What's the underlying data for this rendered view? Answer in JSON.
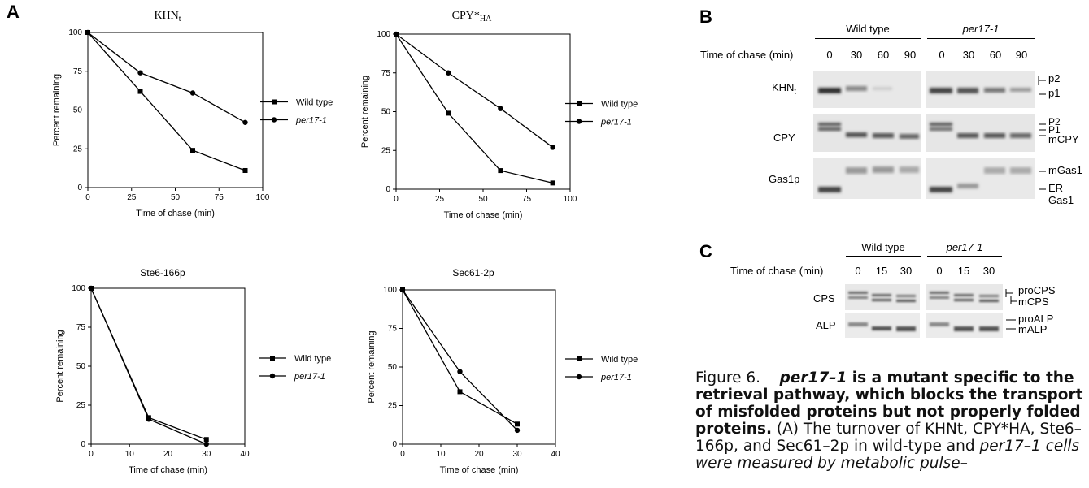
{
  "panel_a": {
    "letter": "A",
    "legend": {
      "wt": "Wild type",
      "mut": "per17-1"
    },
    "xlabel": "Time of chase (min)",
    "ylabel": "Percent remaining"
  },
  "chart_data": [
    {
      "type": "line",
      "title": "KHNt",
      "xlabel": "Time of chase (min)",
      "ylabel": "Percent remaining",
      "xlim": [
        0,
        100
      ],
      "ylim": [
        0,
        100
      ],
      "xticks": [
        0,
        25,
        50,
        75,
        100
      ],
      "yticks": [
        0,
        25,
        50,
        75,
        100
      ],
      "series": [
        {
          "name": "Wild type",
          "x": [
            0,
            30,
            60,
            90
          ],
          "y": [
            100,
            62,
            24,
            11
          ]
        },
        {
          "name": "per17-1",
          "x": [
            0,
            30,
            60,
            90
          ],
          "y": [
            100,
            74,
            61,
            42
          ]
        }
      ]
    },
    {
      "type": "line",
      "title": "CPY*HA",
      "xlabel": "Time of chase (min)",
      "ylabel": "Percent remaining",
      "xlim": [
        0,
        100
      ],
      "ylim": [
        0,
        100
      ],
      "xticks": [
        0,
        25,
        50,
        75,
        100
      ],
      "yticks": [
        0,
        25,
        50,
        75,
        100
      ],
      "series": [
        {
          "name": "Wild type",
          "x": [
            0,
            30,
            60,
            90
          ],
          "y": [
            100,
            49,
            12,
            4
          ]
        },
        {
          "name": "per17-1",
          "x": [
            0,
            30,
            60,
            90
          ],
          "y": [
            100,
            75,
            52,
            27
          ]
        }
      ]
    },
    {
      "type": "line",
      "title": "Ste6-166p",
      "xlabel": "Time of chase (min)",
      "ylabel": "Percent remaining",
      "xlim": [
        0,
        40
      ],
      "ylim": [
        0,
        100
      ],
      "xticks": [
        0,
        10,
        20,
        30,
        40
      ],
      "yticks": [
        0,
        25,
        50,
        75,
        100
      ],
      "series": [
        {
          "name": "Wild type",
          "x": [
            0,
            15,
            30
          ],
          "y": [
            100,
            17,
            3
          ]
        },
        {
          "name": "per17-1",
          "x": [
            0,
            15,
            30
          ],
          "y": [
            100,
            16,
            0
          ]
        }
      ]
    },
    {
      "type": "line",
      "title": "Sec61-2p",
      "xlabel": "Time of chase (min)",
      "ylabel": "Percent remaining",
      "xlim": [
        0,
        40
      ],
      "ylim": [
        0,
        100
      ],
      "xticks": [
        0,
        10,
        20,
        30,
        40
      ],
      "yticks": [
        0,
        25,
        50,
        75,
        100
      ],
      "series": [
        {
          "name": "Wild type",
          "x": [
            0,
            15,
            30
          ],
          "y": [
            100,
            34,
            13
          ]
        },
        {
          "name": "per17-1",
          "x": [
            0,
            15,
            30
          ],
          "y": [
            100,
            47,
            9
          ]
        }
      ]
    }
  ],
  "panel_b": {
    "letter": "B",
    "header_wt": "Wild type",
    "header_mut": "per17-1",
    "time_label": "Time of chase (min)",
    "times": [
      "0",
      "30",
      "60",
      "90"
    ],
    "rows": [
      "KHNt",
      "CPY",
      "Gas1p"
    ],
    "bands": [
      "p2",
      "p1",
      "P2",
      "P1",
      "mCPY",
      "mGas1",
      "ER Gas1"
    ]
  },
  "panel_c": {
    "letter": "C",
    "header_wt": "Wild type",
    "header_mut": "per17-1",
    "time_label": "Time of chase (min)",
    "times": [
      "0",
      "15",
      "30"
    ],
    "rows": [
      "CPS",
      "ALP"
    ],
    "bands": [
      "proCPS",
      "mCPS",
      "proALP",
      "mALP"
    ]
  },
  "caption": {
    "label": "Figure 6.",
    "bold_a": "per17–1",
    "bold_b": " is a mutant specific to the retrieval pathway, which blocks the transport of misfolded proteins but not properly folded proteins.",
    "body": " (A) The turnover of KHNt, CPY*HA, Ste6–166p, and Sec61–2p in wild-type and",
    "body2": "per17–1 cells were measured by metabolic pulse–"
  }
}
